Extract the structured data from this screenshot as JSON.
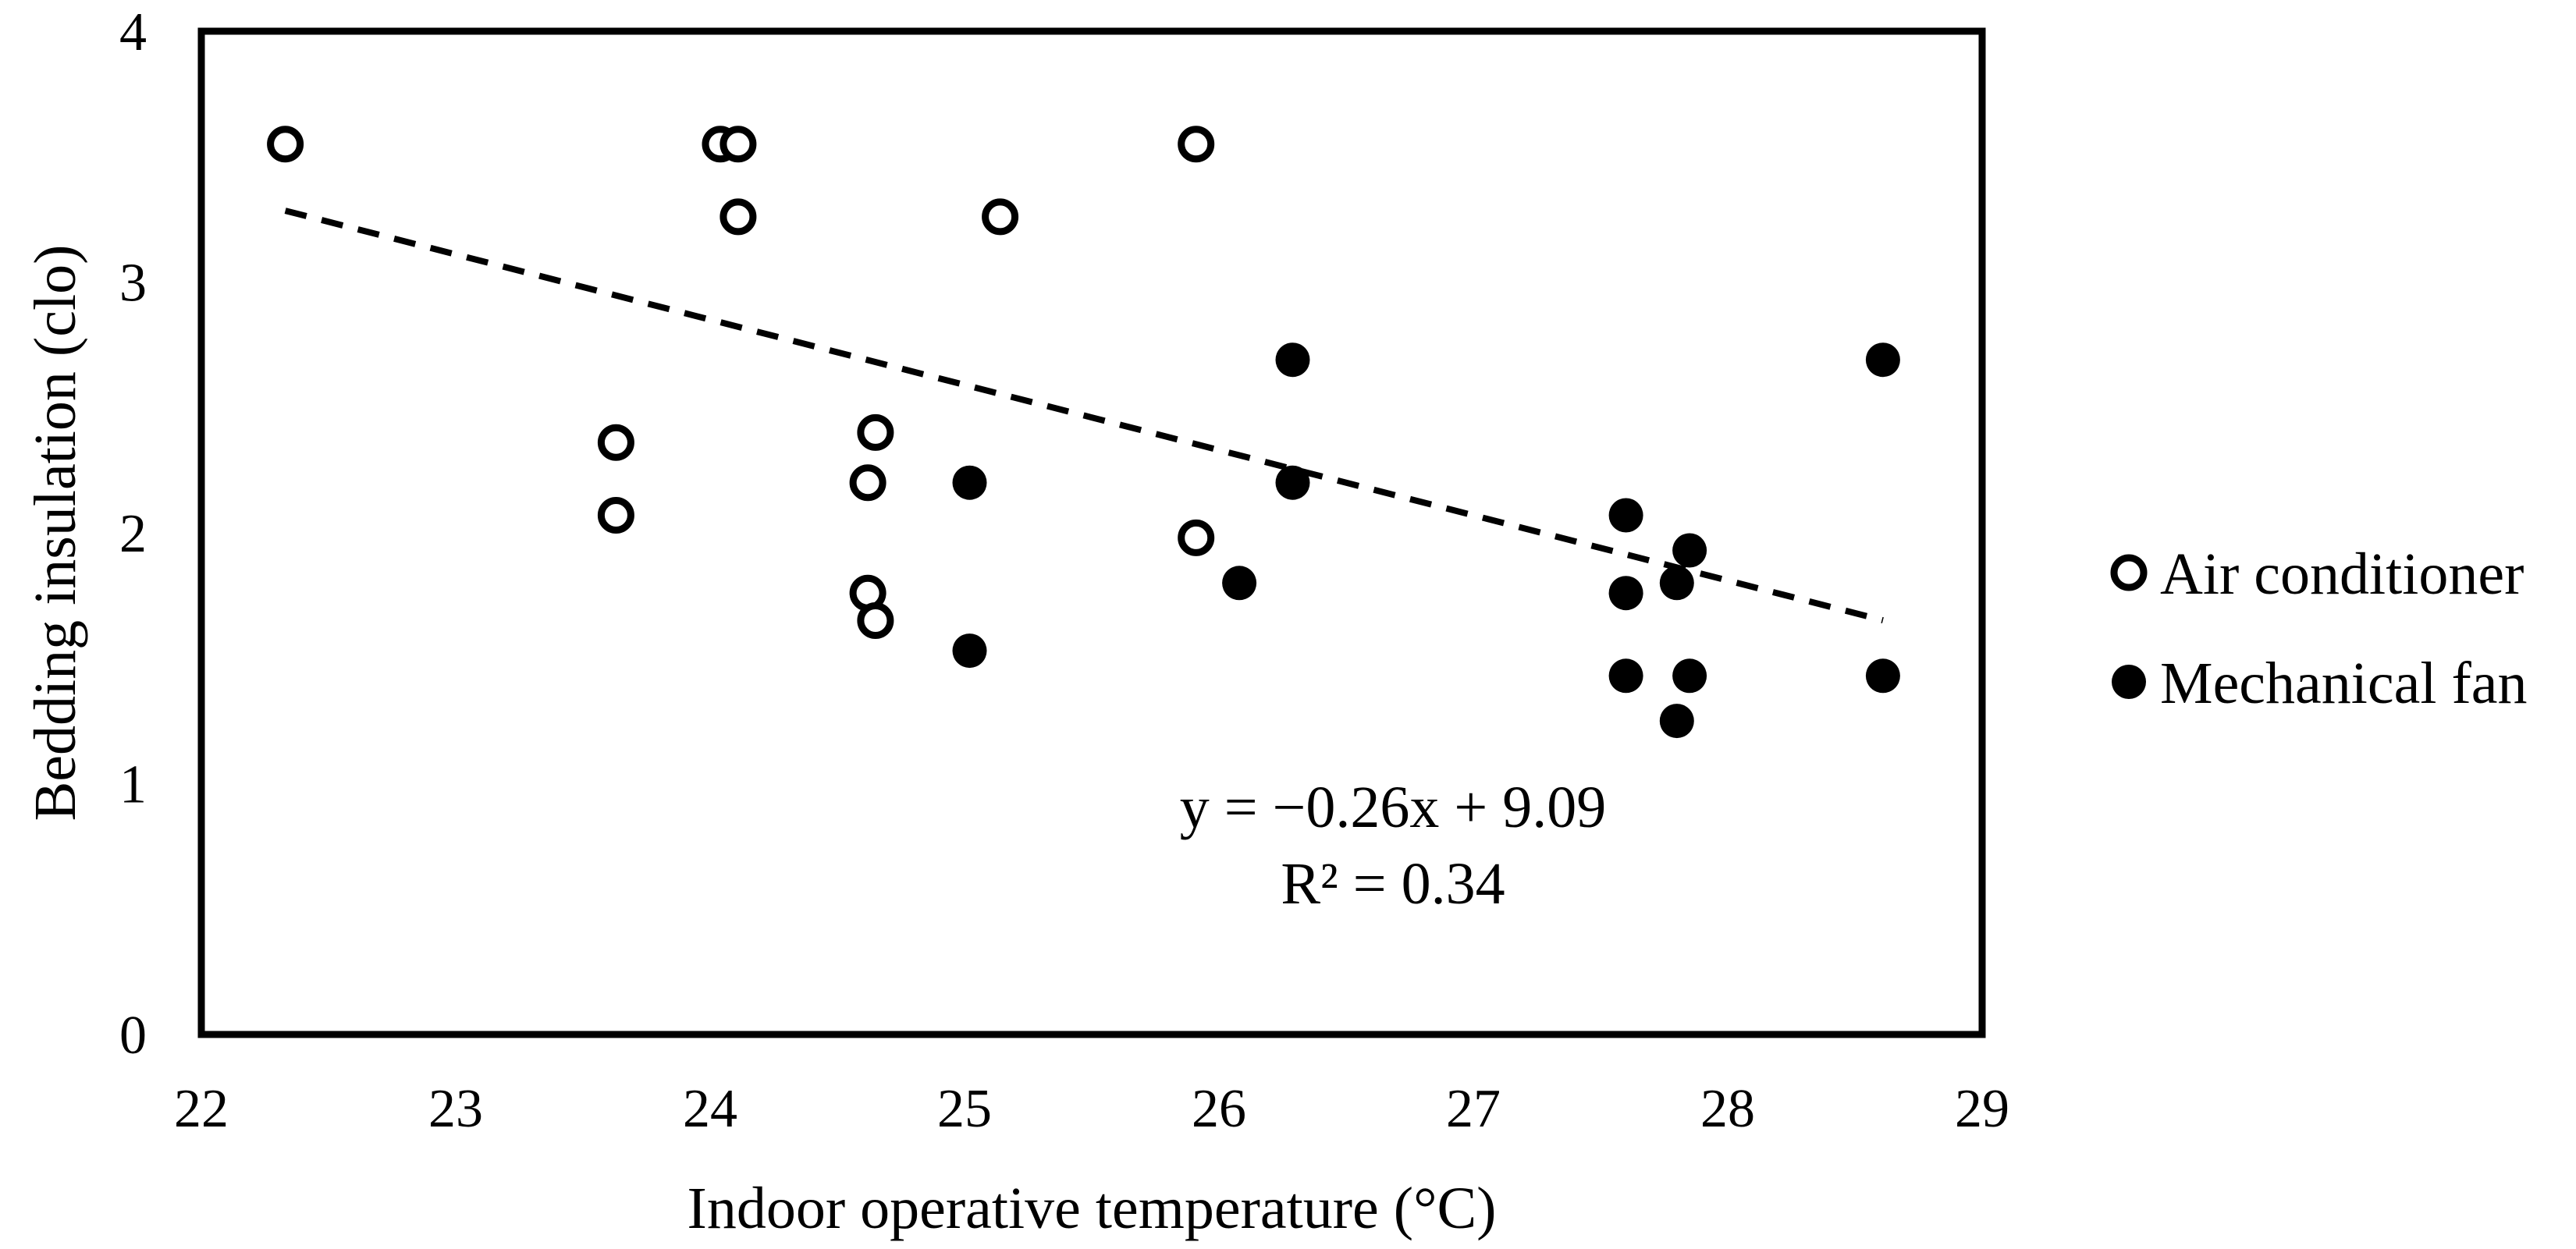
{
  "chart_data": {
    "type": "scatter",
    "title": "",
    "xlabel": "Indoor operative temperature (°C)",
    "ylabel": "Bedding insulation (clo)",
    "xlim": [
      22,
      29
    ],
    "ylim": [
      0,
      4
    ],
    "xticks": [
      "22",
      "23",
      "24",
      "25",
      "26",
      "27",
      "28",
      "29"
    ],
    "yticks": [
      "0",
      "1",
      "2",
      "3",
      "4"
    ],
    "grid": false,
    "legend_position": "right",
    "series": [
      {
        "name": "Air conditioner",
        "marker": "open-circle",
        "color": "#000000",
        "points": [
          [
            22.33,
            3.55
          ],
          [
            24.04,
            3.55
          ],
          [
            24.11,
            3.55
          ],
          [
            25.91,
            3.55
          ],
          [
            24.11,
            3.26
          ],
          [
            25.14,
            3.26
          ],
          [
            23.63,
            2.36
          ],
          [
            24.65,
            2.4
          ],
          [
            24.62,
            2.2
          ],
          [
            23.63,
            2.07
          ],
          [
            25.91,
            1.98
          ],
          [
            24.62,
            1.76
          ],
          [
            24.65,
            1.65
          ]
        ]
      },
      {
        "name": "Mechanical fan",
        "marker": "filled-circle",
        "color": "#000000",
        "points": [
          [
            26.29,
            2.69
          ],
          [
            28.61,
            2.69
          ],
          [
            25.02,
            2.2
          ],
          [
            26.29,
            2.2
          ],
          [
            27.6,
            2.07
          ],
          [
            27.85,
            1.93
          ],
          [
            26.08,
            1.8
          ],
          [
            27.8,
            1.8
          ],
          [
            27.6,
            1.76
          ],
          [
            25.02,
            1.53
          ],
          [
            27.6,
            1.43
          ],
          [
            27.85,
            1.43
          ],
          [
            28.61,
            1.43
          ],
          [
            27.8,
            1.25
          ]
        ]
      }
    ],
    "trendline": {
      "type": "linear",
      "slope": -0.26,
      "intercept": 9.09,
      "x_range": [
        22.33,
        28.61
      ],
      "style": "dashed",
      "equation": "y = −0.26x + 9.09",
      "r_squared": "R² = 0.34"
    }
  }
}
